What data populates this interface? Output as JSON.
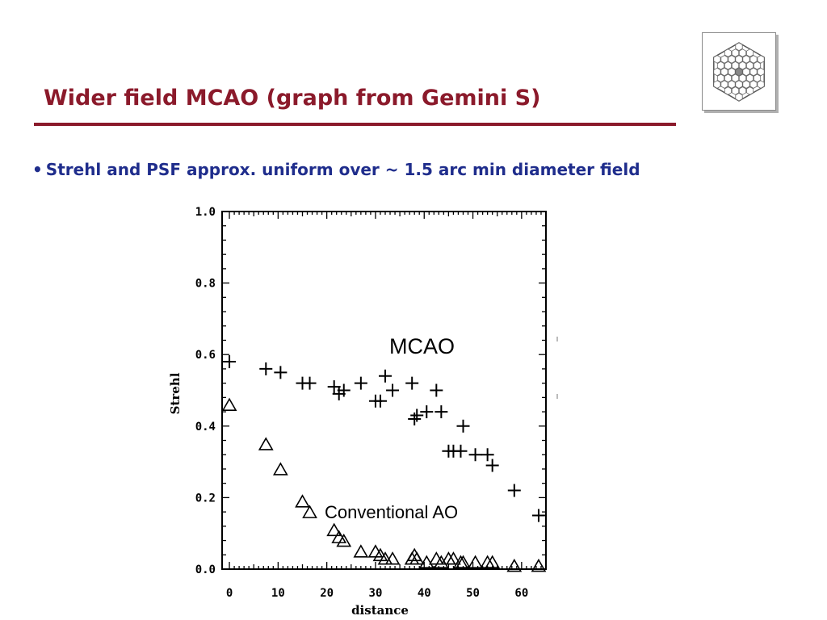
{
  "slide": {
    "title": "Wider field MCAO (graph from Gemini S)",
    "bullet": "Strehl and PSF  approx. uniform over ~ 1.5 arc min diameter field",
    "bullet_marker": "•",
    "title_color": "#8b1a2b",
    "bullet_color": "#1f2d8c",
    "logo_icon": "segmented-mirror-icon"
  },
  "annotations": {
    "mcao": "MCAO",
    "conventional": "Conventional AO"
  },
  "chart_data": {
    "type": "scatter",
    "xlabel": "distance",
    "ylabel": "Strehl",
    "xlim": [
      -1.5,
      65
    ],
    "ylim": [
      0,
      1.0
    ],
    "xticks": [
      "0",
      "10",
      "20",
      "30",
      "40",
      "50",
      "60"
    ],
    "xtick_values": [
      0,
      10,
      20,
      30,
      40,
      50,
      60
    ],
    "yticks": [
      "0.0",
      "0.2",
      "0.4",
      "0.6",
      "0.8",
      "1.0"
    ],
    "ytick_values": [
      0.0,
      0.2,
      0.4,
      0.6,
      0.8,
      1.0
    ],
    "grid": false,
    "series": [
      {
        "name": "MCAO",
        "marker": "plus",
        "points": [
          [
            0,
            0.58
          ],
          [
            7.5,
            0.56
          ],
          [
            10.5,
            0.55
          ],
          [
            15,
            0.52
          ],
          [
            16.5,
            0.52
          ],
          [
            21.5,
            0.51
          ],
          [
            22.5,
            0.49
          ],
          [
            23.5,
            0.5
          ],
          [
            27,
            0.52
          ],
          [
            30,
            0.47
          ],
          [
            31,
            0.47
          ],
          [
            32,
            0.54
          ],
          [
            33.5,
            0.5
          ],
          [
            37.5,
            0.52
          ],
          [
            38,
            0.42
          ],
          [
            38.5,
            0.43
          ],
          [
            40.5,
            0.44
          ],
          [
            42.5,
            0.5
          ],
          [
            43.5,
            0.44
          ],
          [
            45,
            0.33
          ],
          [
            46,
            0.33
          ],
          [
            47.5,
            0.33
          ],
          [
            48,
            0.4
          ],
          [
            50.5,
            0.32
          ],
          [
            53,
            0.32
          ],
          [
            54,
            0.29
          ],
          [
            58.5,
            0.22
          ],
          [
            63.5,
            0.15
          ]
        ]
      },
      {
        "name": "Conventional AO",
        "marker": "triangle",
        "points": [
          [
            0,
            0.46
          ],
          [
            7.5,
            0.35
          ],
          [
            10.5,
            0.28
          ],
          [
            15,
            0.19
          ],
          [
            16.5,
            0.16
          ],
          [
            21.5,
            0.11
          ],
          [
            22.5,
            0.09
          ],
          [
            23.5,
            0.08
          ],
          [
            27,
            0.05
          ],
          [
            30,
            0.05
          ],
          [
            31,
            0.04
          ],
          [
            32,
            0.03
          ],
          [
            33.5,
            0.03
          ],
          [
            37.5,
            0.03
          ],
          [
            38,
            0.04
          ],
          [
            38.5,
            0.03
          ],
          [
            40.5,
            0.02
          ],
          [
            42.5,
            0.03
          ],
          [
            43.5,
            0.02
          ],
          [
            45,
            0.03
          ],
          [
            46,
            0.03
          ],
          [
            47.5,
            0.02
          ],
          [
            48,
            0.02
          ],
          [
            50.5,
            0.02
          ],
          [
            53,
            0.02
          ],
          [
            54,
            0.02
          ],
          [
            58.5,
            0.01
          ],
          [
            63.5,
            0.01
          ]
        ]
      }
    ]
  }
}
